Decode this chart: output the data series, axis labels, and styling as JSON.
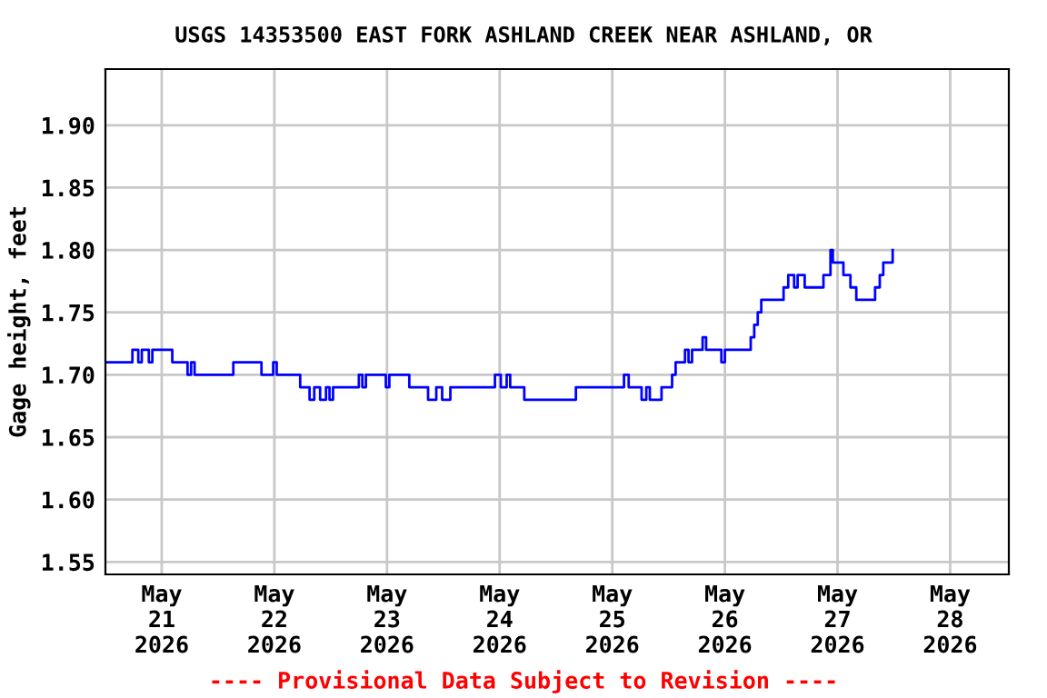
{
  "chart_data": {
    "type": "step",
    "title": "USGS 14353500 EAST FORK ASHLAND CREEK NEAR ASHLAND, OR",
    "ylabel": "Gage height, feet",
    "annotations": [
      "---- Provisional Data Subject to Revision ----"
    ],
    "series": [
      {
        "color": "#0000ff",
        "x": [
          "2026-05-20T12:00",
          "2026-05-20T17:45",
          "2026-05-20T19:00",
          "2026-05-20T19:45",
          "2026-05-20T21:15",
          "2026-05-20T22:00",
          "2026-05-21T02:15",
          "2026-05-21T05:30",
          "2026-05-21T06:15",
          "2026-05-21T07:00",
          "2026-05-21T15:15",
          "2026-05-21T21:15",
          "2026-05-21T23:45",
          "2026-05-22T00:30",
          "2026-05-22T05:30",
          "2026-05-22T07:30",
          "2026-05-22T08:30",
          "2026-05-22T09:45",
          "2026-05-22T11:00",
          "2026-05-22T11:45",
          "2026-05-22T12:30",
          "2026-05-22T18:00",
          "2026-05-22T18:45",
          "2026-05-22T19:30",
          "2026-05-22T23:45",
          "2026-05-23T00:30",
          "2026-05-23T04:45",
          "2026-05-23T08:45",
          "2026-05-23T10:30",
          "2026-05-23T11:45",
          "2026-05-23T13:30",
          "2026-05-23T23:00",
          "2026-05-24T00:15",
          "2026-05-24T01:30",
          "2026-05-24T02:15",
          "2026-05-24T05:15",
          "2026-05-24T16:15",
          "2026-05-25T02:30",
          "2026-05-25T03:30",
          "2026-05-25T06:15",
          "2026-05-25T07:15",
          "2026-05-25T08:00",
          "2026-05-25T10:30",
          "2026-05-25T12:45",
          "2026-05-25T13:30",
          "2026-05-25T15:30",
          "2026-05-25T16:15",
          "2026-05-25T17:00",
          "2026-05-25T19:15",
          "2026-05-25T20:00",
          "2026-05-25T23:15",
          "2026-05-26T00:00",
          "2026-05-26T05:30",
          "2026-05-26T06:15",
          "2026-05-26T07:00",
          "2026-05-26T07:45",
          "2026-05-26T12:30",
          "2026-05-26T13:30",
          "2026-05-26T14:45",
          "2026-05-26T15:30",
          "2026-05-26T17:00",
          "2026-05-26T21:00",
          "2026-05-26T22:30",
          "2026-05-26T23:00",
          "2026-05-27T01:15",
          "2026-05-27T02:45",
          "2026-05-27T04:00",
          "2026-05-27T08:00",
          "2026-05-27T09:00",
          "2026-05-27T09:45",
          "2026-05-27T11:45"
        ],
        "values": [
          1.71,
          1.72,
          1.71,
          1.72,
          1.71,
          1.72,
          1.71,
          1.7,
          1.71,
          1.7,
          1.71,
          1.7,
          1.71,
          1.7,
          1.69,
          1.68,
          1.69,
          1.68,
          1.69,
          1.68,
          1.69,
          1.7,
          1.69,
          1.7,
          1.69,
          1.7,
          1.69,
          1.68,
          1.69,
          1.68,
          1.69,
          1.7,
          1.69,
          1.7,
          1.69,
          1.68,
          1.69,
          1.7,
          1.69,
          1.68,
          1.69,
          1.68,
          1.69,
          1.7,
          1.71,
          1.72,
          1.71,
          1.72,
          1.73,
          1.72,
          1.71,
          1.72,
          1.73,
          1.74,
          1.75,
          1.76,
          1.77,
          1.78,
          1.77,
          1.78,
          1.77,
          1.78,
          1.8,
          1.79,
          1.78,
          1.77,
          1.76,
          1.77,
          1.78,
          1.79,
          1.8
        ]
      }
    ],
    "xlim": [
      "2026-05-20T12:00",
      "2026-05-28T12:30"
    ],
    "xticks": [
      {
        "value": "2026-05-21",
        "label": "May\n21\n2026"
      },
      {
        "value": "2026-05-22",
        "label": "May\n22\n2026"
      },
      {
        "value": "2026-05-23",
        "label": "May\n23\n2026"
      },
      {
        "value": "2026-05-24",
        "label": "May\n24\n2026"
      },
      {
        "value": "2026-05-25",
        "label": "May\n25\n2026"
      },
      {
        "value": "2026-05-26",
        "label": "May\n26\n2026"
      },
      {
        "value": "2026-05-27",
        "label": "May\n27\n2026"
      },
      {
        "value": "2026-05-28",
        "label": "May\n28\n2026"
      }
    ],
    "ylim": [
      1.54,
      1.945
    ],
    "yticks": [
      1.55,
      {
        "value": 1.6,
        "label": "1.60"
      },
      1.65,
      {
        "value": 1.7,
        "label": "1.70"
      },
      1.75,
      {
        "value": 1.8,
        "label": "1.80"
      },
      1.85,
      {
        "value": 1.9,
        "label": "1.90"
      }
    ],
    "grid": true,
    "legend": false,
    "marker": "none",
    "line_style": "solid"
  }
}
